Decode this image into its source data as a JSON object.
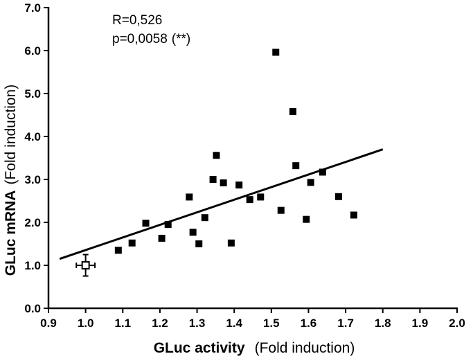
{
  "chart_data": {
    "type": "scatter",
    "title": "",
    "xlabel_bold": "GLuc activity",
    "xlabel_normal": "(Fold induction)",
    "ylabel_bold": "GLuc mRNA",
    "ylabel_normal": "(Fold induction)",
    "xlim": [
      0.9,
      2.0
    ],
    "ylim": [
      0.0,
      7.0
    ],
    "x_ticks": [
      "0.9",
      "1.0",
      "1.1",
      "1.2",
      "1.3",
      "1.4",
      "1.5",
      "1.6",
      "1.7",
      "1.8",
      "1.9",
      "2.0"
    ],
    "y_ticks": [
      "0.0",
      "1.0",
      "2.0",
      "3.0",
      "4.0",
      "5.0",
      "6.0",
      "7.0"
    ],
    "annotations": {
      "r_text": "R=0,526",
      "p_text": "p=0,0058",
      "p_stars": "(**)"
    },
    "control_point": {
      "x": 1.0,
      "y": 1.0,
      "x_err": 0.025,
      "y_err": 0.25
    },
    "points": [
      {
        "x": 1.088,
        "y": 1.35
      },
      {
        "x": 1.125,
        "y": 1.52
      },
      {
        "x": 1.162,
        "y": 1.98
      },
      {
        "x": 1.205,
        "y": 1.63
      },
      {
        "x": 1.222,
        "y": 1.95
      },
      {
        "x": 1.279,
        "y": 2.59
      },
      {
        "x": 1.289,
        "y": 1.77
      },
      {
        "x": 1.305,
        "y": 1.5
      },
      {
        "x": 1.321,
        "y": 2.11
      },
      {
        "x": 1.343,
        "y": 3.0
      },
      {
        "x": 1.352,
        "y": 3.56
      },
      {
        "x": 1.371,
        "y": 2.92
      },
      {
        "x": 1.392,
        "y": 1.52
      },
      {
        "x": 1.413,
        "y": 2.87
      },
      {
        "x": 1.442,
        "y": 2.53
      },
      {
        "x": 1.471,
        "y": 2.59
      },
      {
        "x": 1.512,
        "y": 5.96
      },
      {
        "x": 1.526,
        "y": 2.28
      },
      {
        "x": 1.558,
        "y": 4.58
      },
      {
        "x": 1.566,
        "y": 3.32
      },
      {
        "x": 1.594,
        "y": 2.07
      },
      {
        "x": 1.606,
        "y": 2.93
      },
      {
        "x": 1.638,
        "y": 3.17
      },
      {
        "x": 1.681,
        "y": 2.6
      },
      {
        "x": 1.722,
        "y": 2.17
      }
    ],
    "regression_line": {
      "x1": 0.93,
      "y1": 1.15,
      "x2": 1.8,
      "y2": 3.7
    },
    "grid": false,
    "colors": {
      "marker": "#000000",
      "open_marker_fill": "#ffffff",
      "axis": "#000000"
    }
  }
}
